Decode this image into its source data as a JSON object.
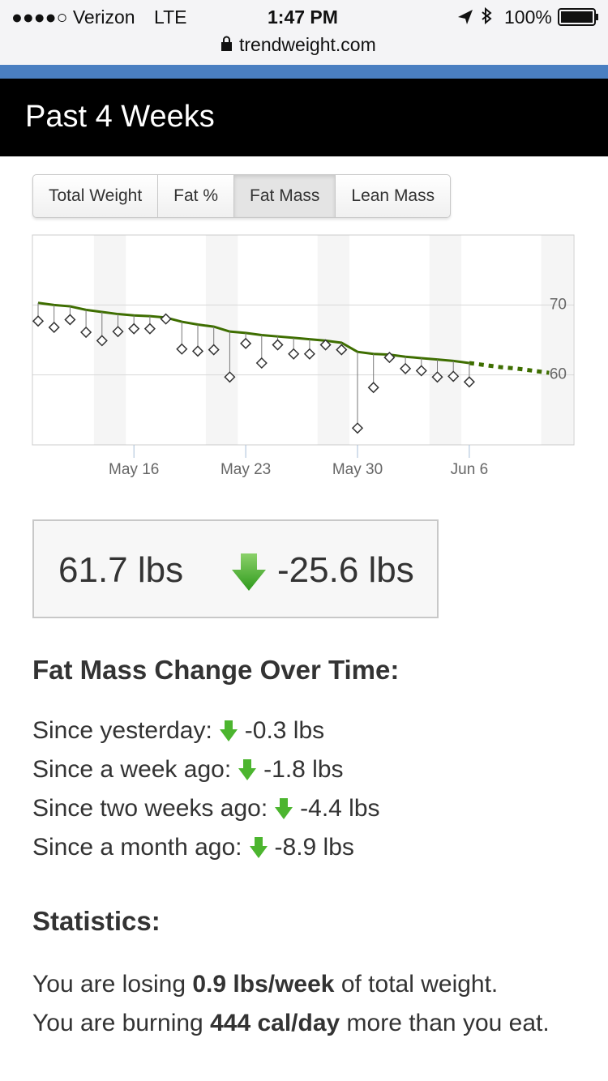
{
  "status_bar": {
    "carrier": "●●●●○ Verizon",
    "network": "LTE",
    "time": "1:47 PM",
    "battery": "100%"
  },
  "url": "trendweight.com",
  "header": {
    "title": "Past 4 Weeks"
  },
  "tabs": [
    "Total Weight",
    "Fat %",
    "Fat Mass",
    "Lean Mass"
  ],
  "chart_data": {
    "type": "line",
    "categories": [
      null,
      null,
      null,
      null,
      null,
      null,
      "May 16",
      null,
      null,
      null,
      null,
      null,
      null,
      "May 23",
      null,
      null,
      null,
      null,
      null,
      null,
      "May 30",
      null,
      null,
      null,
      null,
      null,
      null,
      "Jun 6",
      null,
      null,
      null,
      null,
      null
    ],
    "series": [
      {
        "color": "#333333",
        "marker": "diamond",
        "values": [
          67.7,
          66.8,
          67.9,
          66.1,
          64.9,
          66.2,
          66.6,
          66.6,
          68.0,
          63.7,
          63.4,
          63.6,
          59.7,
          64.5,
          61.7,
          64.3,
          63.0,
          63.0,
          64.3,
          63.6,
          52.4,
          58.2,
          62.5,
          60.9,
          60.6,
          59.7,
          59.8,
          59.0,
          null,
          null,
          null,
          null,
          null
        ]
      },
      {
        "color": "#3e6e00",
        "line_style": "solid",
        "values": [
          70.3,
          70.0,
          69.8,
          69.3,
          69.0,
          68.7,
          68.5,
          68.4,
          68.2,
          67.6,
          67.2,
          66.9,
          66.2,
          66.0,
          65.7,
          65.5,
          65.3,
          65.1,
          64.9,
          64.6,
          63.3,
          63.0,
          62.9,
          62.6,
          62.4,
          62.2,
          62.0,
          61.7,
          null,
          null,
          null,
          null,
          null
        ]
      },
      {
        "color": "#3e6e00",
        "line_style": "dotted",
        "values": [
          null,
          null,
          null,
          null,
          null,
          null,
          null,
          null,
          null,
          null,
          null,
          null,
          null,
          null,
          null,
          null,
          null,
          null,
          null,
          null,
          null,
          null,
          null,
          null,
          null,
          null,
          null,
          61.7,
          61.4,
          61.1,
          60.9,
          60.6,
          60.3
        ]
      }
    ],
    "ylim": [
      50,
      80
    ],
    "yticks": [
      60,
      70
    ],
    "grid": true
  },
  "summary": {
    "current": "61.7 lbs",
    "change": "-25.6 lbs"
  },
  "change_section": {
    "title": "Fat Mass Change Over Time:",
    "rows": [
      {
        "label": "Since yesterday:",
        "value": "-0.3 lbs"
      },
      {
        "label": "Since a week ago:",
        "value": "-1.8 lbs"
      },
      {
        "label": "Since two weeks ago:",
        "value": "-4.4 lbs"
      },
      {
        "label": "Since a month ago:",
        "value": "-8.9 lbs"
      }
    ]
  },
  "statistics": {
    "title": "Statistics:",
    "lines": [
      [
        "You are losing ",
        "0.9 lbs/week",
        " of total weight."
      ],
      [
        "You are burning ",
        "444 cal/day",
        " more than you eat."
      ]
    ]
  }
}
